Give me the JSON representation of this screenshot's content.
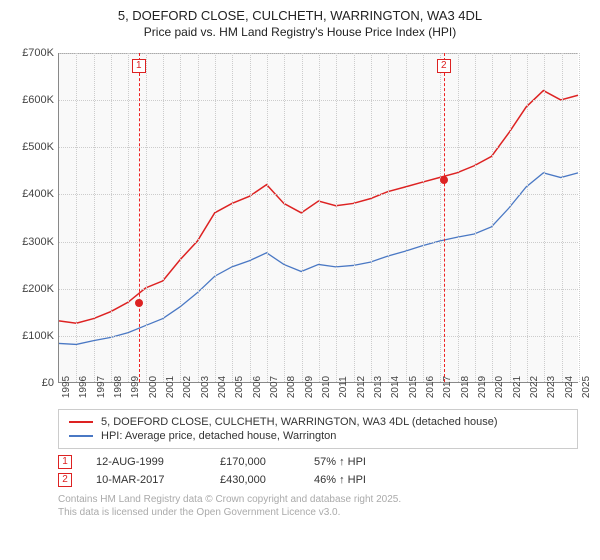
{
  "title_main": "5, DOEFORD CLOSE, CULCHETH, WARRINGTON, WA3 4DL",
  "title_sub": "Price paid vs. HM Land Registry's House Price Index (HPI)",
  "chart": {
    "type": "line",
    "background_color": "#f9f9f9",
    "grid_color": "#cccccc",
    "axis_color": "#888888",
    "xlim": [
      1995,
      2025
    ],
    "ylim": [
      0,
      700000
    ],
    "ytick_step": 100000,
    "y_ticks": [
      "£0",
      "£100K",
      "£200K",
      "£300K",
      "£400K",
      "£500K",
      "£600K",
      "£700K"
    ],
    "x_ticks": [
      "1995",
      "1996",
      "1997",
      "1998",
      "1999",
      "2000",
      "2001",
      "2002",
      "2003",
      "2004",
      "2005",
      "2006",
      "2007",
      "2008",
      "2009",
      "2010",
      "2011",
      "2012",
      "2013",
      "2014",
      "2015",
      "2016",
      "2017",
      "2018",
      "2019",
      "2020",
      "2021",
      "2022",
      "2023",
      "2024",
      "2025"
    ],
    "series": [
      {
        "name": "property",
        "label": "5, DOEFORD CLOSE, CULCHETH, WARRINGTON, WA3 4DL (detached house)",
        "color": "#dd2222",
        "line_width": 1.5,
        "points": [
          [
            1995,
            130000
          ],
          [
            1996,
            125000
          ],
          [
            1997,
            135000
          ],
          [
            1998,
            150000
          ],
          [
            1999,
            170000
          ],
          [
            2000,
            200000
          ],
          [
            2001,
            215000
          ],
          [
            2002,
            260000
          ],
          [
            2003,
            300000
          ],
          [
            2004,
            360000
          ],
          [
            2005,
            380000
          ],
          [
            2006,
            395000
          ],
          [
            2007,
            420000
          ],
          [
            2008,
            380000
          ],
          [
            2009,
            360000
          ],
          [
            2010,
            385000
          ],
          [
            2011,
            375000
          ],
          [
            2012,
            380000
          ],
          [
            2013,
            390000
          ],
          [
            2014,
            405000
          ],
          [
            2015,
            415000
          ],
          [
            2016,
            425000
          ],
          [
            2017,
            435000
          ],
          [
            2018,
            445000
          ],
          [
            2019,
            460000
          ],
          [
            2020,
            480000
          ],
          [
            2021,
            530000
          ],
          [
            2022,
            585000
          ],
          [
            2023,
            620000
          ],
          [
            2024,
            600000
          ],
          [
            2025,
            610000
          ]
        ]
      },
      {
        "name": "hpi",
        "label": "HPI: Average price, detached house, Warrington",
        "color": "#4a78c4",
        "line_width": 1.3,
        "points": [
          [
            1995,
            82000
          ],
          [
            1996,
            80000
          ],
          [
            1997,
            88000
          ],
          [
            1998,
            95000
          ],
          [
            1999,
            105000
          ],
          [
            2000,
            120000
          ],
          [
            2001,
            135000
          ],
          [
            2002,
            160000
          ],
          [
            2003,
            190000
          ],
          [
            2004,
            225000
          ],
          [
            2005,
            245000
          ],
          [
            2006,
            258000
          ],
          [
            2007,
            275000
          ],
          [
            2008,
            250000
          ],
          [
            2009,
            235000
          ],
          [
            2010,
            250000
          ],
          [
            2011,
            245000
          ],
          [
            2012,
            248000
          ],
          [
            2013,
            255000
          ],
          [
            2014,
            268000
          ],
          [
            2015,
            278000
          ],
          [
            2016,
            290000
          ],
          [
            2017,
            300000
          ],
          [
            2018,
            308000
          ],
          [
            2019,
            315000
          ],
          [
            2020,
            330000
          ],
          [
            2021,
            370000
          ],
          [
            2022,
            415000
          ],
          [
            2023,
            445000
          ],
          [
            2024,
            435000
          ],
          [
            2025,
            445000
          ]
        ]
      }
    ],
    "markers": [
      {
        "id": "1",
        "x": 1999.6,
        "point_x": 1999.6,
        "point_y": 170000
      },
      {
        "id": "2",
        "x": 2017.2,
        "point_x": 2017.2,
        "point_y": 430000
      }
    ]
  },
  "legend": [
    {
      "color": "#dd2222",
      "label": "5, DOEFORD CLOSE, CULCHETH, WARRINGTON, WA3 4DL (detached house)"
    },
    {
      "color": "#4a78c4",
      "label": "HPI: Average price, detached house, Warrington"
    }
  ],
  "events": [
    {
      "id": "1",
      "date": "12-AUG-1999",
      "price": "£170,000",
      "pct": "57% ↑ HPI"
    },
    {
      "id": "2",
      "date": "10-MAR-2017",
      "price": "£430,000",
      "pct": "46% ↑ HPI"
    }
  ],
  "attribution_line1": "Contains HM Land Registry data © Crown copyright and database right 2025.",
  "attribution_line2": "This data is licensed under the Open Government Licence v3.0.",
  "label_fontsize": 11,
  "title_fontsize": 13
}
